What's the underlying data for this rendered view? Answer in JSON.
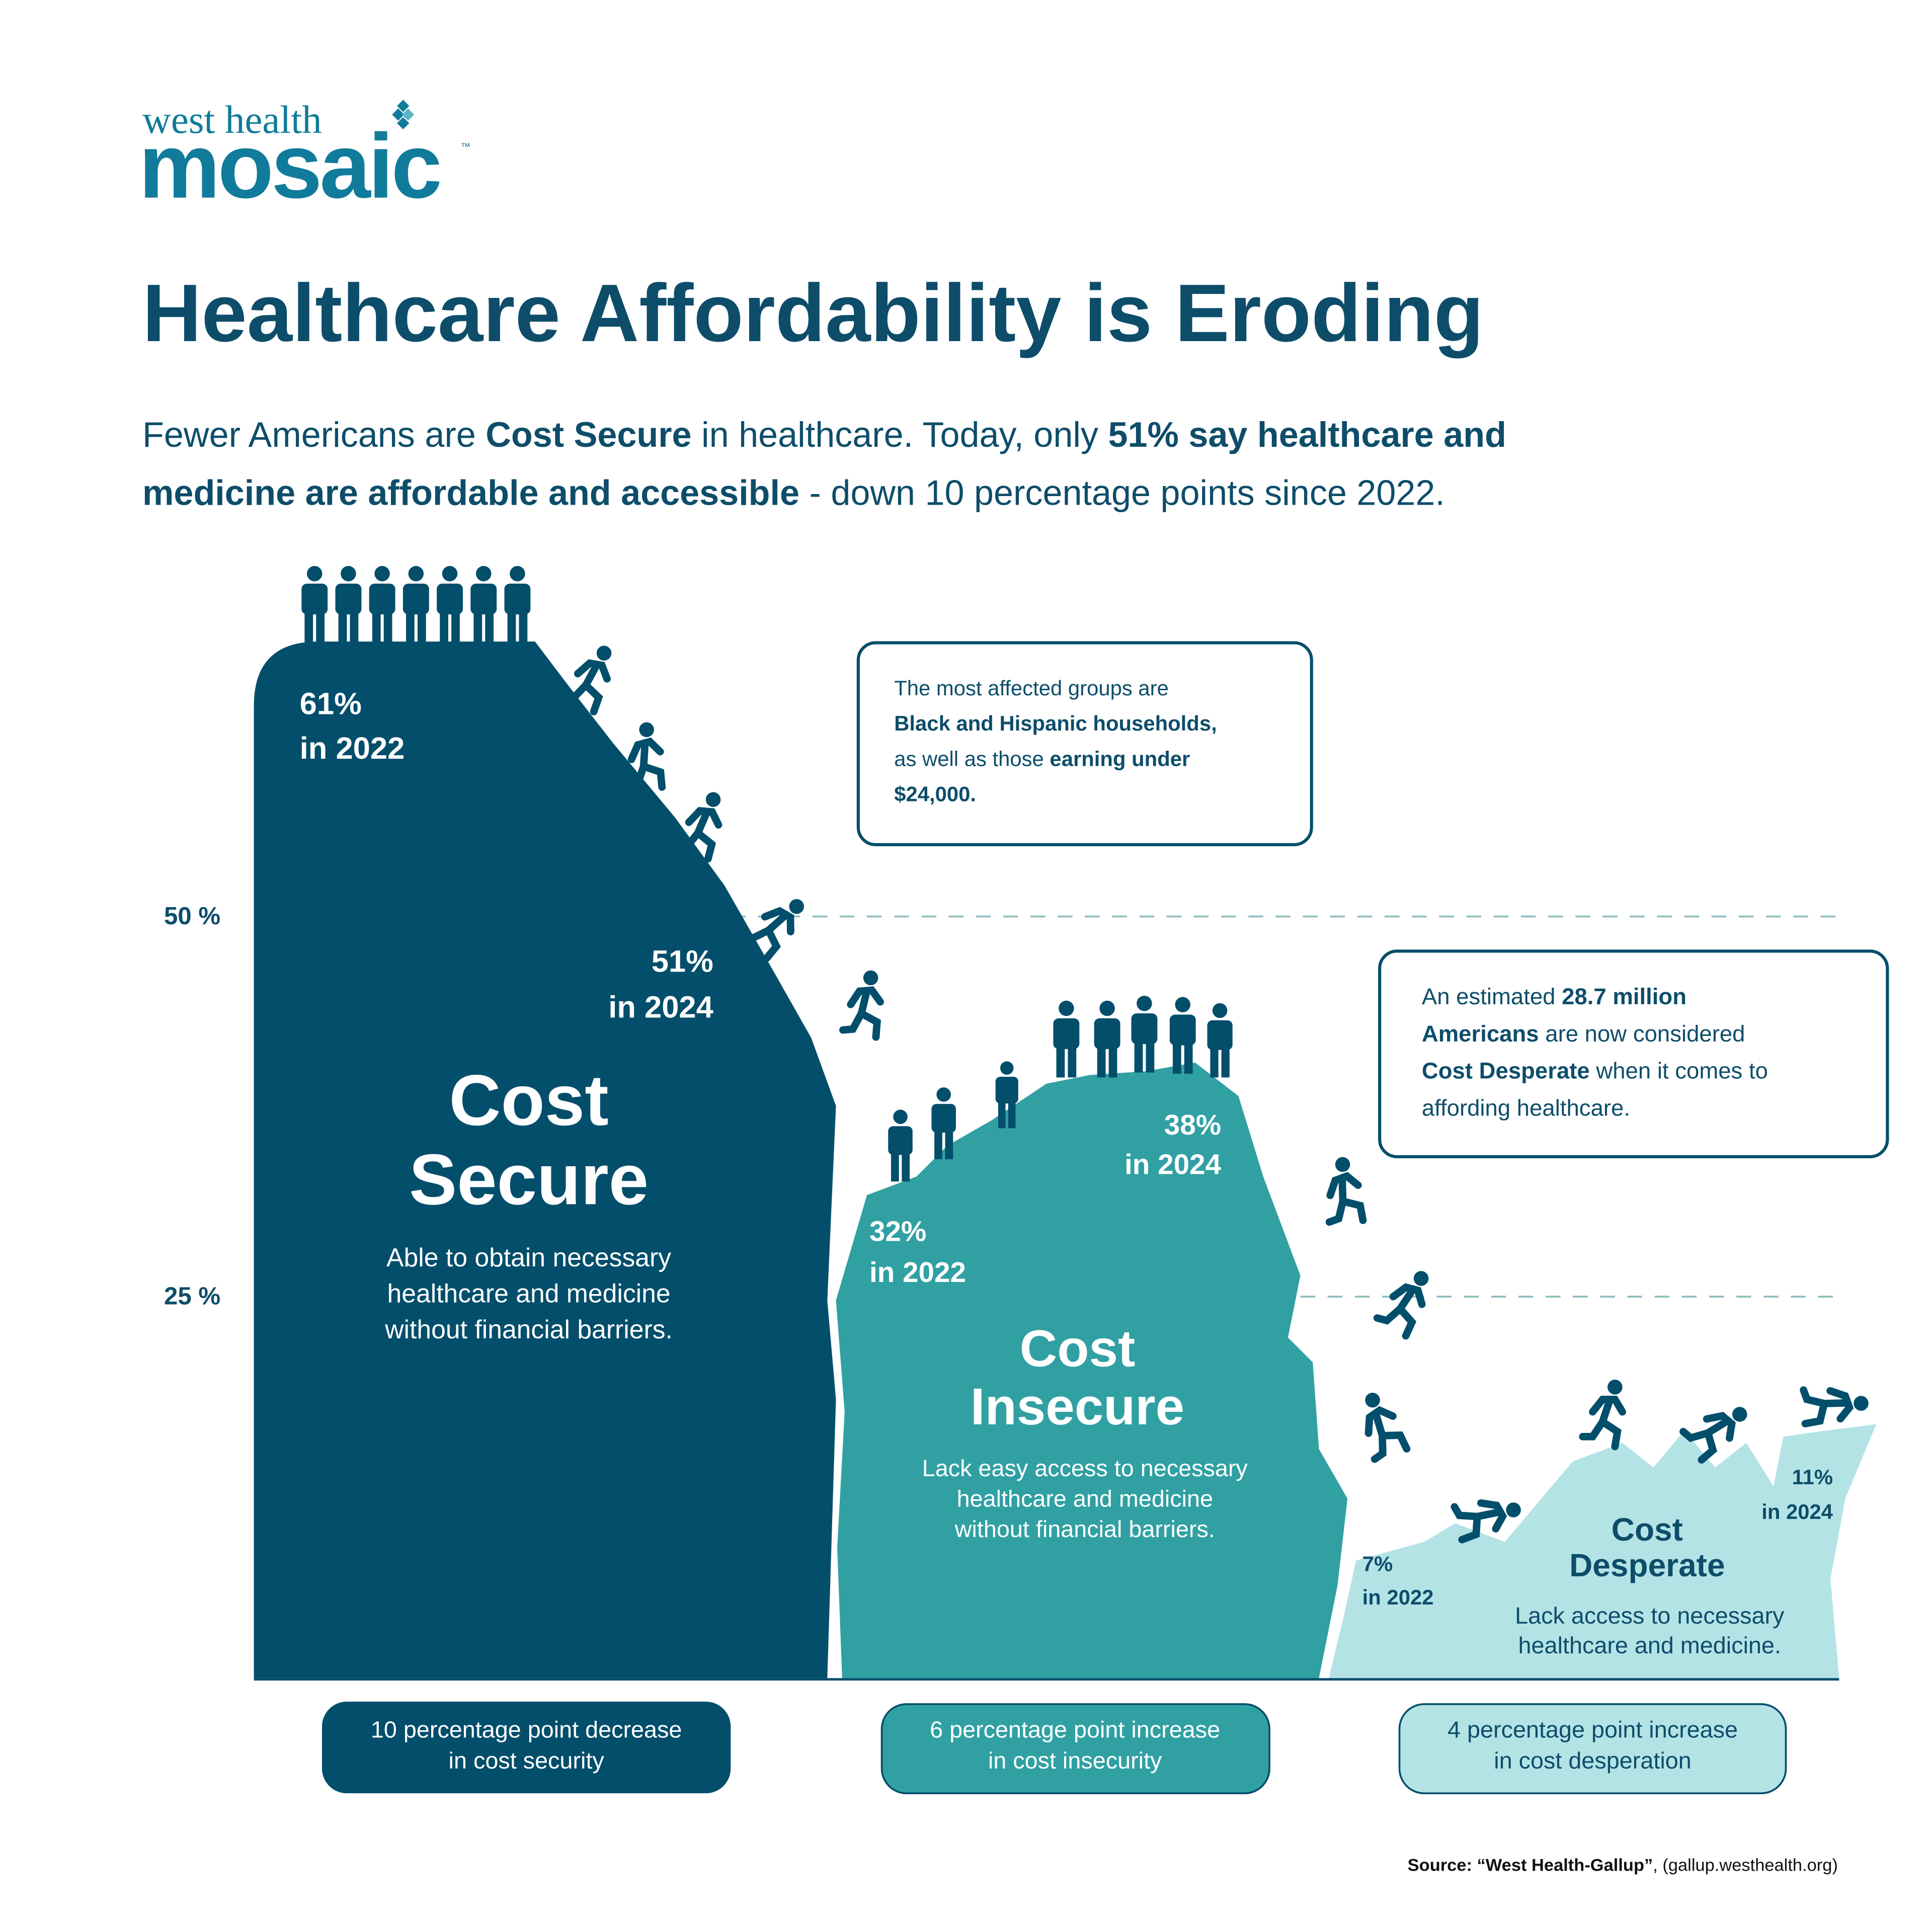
{
  "logo": {
    "line1": "west health",
    "line2": "mosaic",
    "mark": "™"
  },
  "title": "Healthcare Affordability is Eroding",
  "subtitle": [
    [
      {
        "text": "Fewer Americans are "
      },
      {
        "text": "Cost Secure",
        "bold": true
      },
      {
        "text": " in healthcare. Today, only "
      },
      {
        "text": "51% say healthcare and",
        "bold": true
      }
    ],
    [
      {
        "text": "medicine are affordable and accessible",
        "bold": true
      },
      {
        "text": " - down 10 percentage points since 2022."
      }
    ]
  ],
  "axis_labels": [
    "50 %",
    "25 %"
  ],
  "groups": [
    {
      "name": [
        "Cost",
        "Secure"
      ],
      "description": [
        "Able to obtain necessary",
        "healthcare and medicine",
        "without financial barriers."
      ],
      "label_2022": [
        "61%",
        "in 2022"
      ],
      "label_2024": [
        "51%",
        "in 2024"
      ],
      "change": [
        "10 percentage point decrease",
        "in cost security"
      ]
    },
    {
      "name": [
        "Cost",
        "Insecure"
      ],
      "description": [
        "Lack easy access to necessary",
        "healthcare and medicine",
        "without financial barriers."
      ],
      "label_2022": [
        "32%",
        "in 2022"
      ],
      "label_2024": [
        "38%",
        "in 2024"
      ],
      "change": [
        "6 percentage point increase",
        "in cost insecurity"
      ]
    },
    {
      "name": [
        "Cost",
        "Desperate"
      ],
      "description": [
        "Lack access to necessary",
        "healthcare and medicine."
      ],
      "label_2022": [
        "7%",
        "in 2022"
      ],
      "label_2024": [
        "11%",
        "in 2024"
      ],
      "change": [
        "4 percentage point increase",
        "in cost desperation"
      ]
    }
  ],
  "callouts": [
    [
      [
        {
          "text": "The most affected groups are"
        }
      ],
      [
        {
          "text": "Black and Hispanic households,",
          "bold": true
        }
      ],
      [
        {
          "text": "as well as those "
        },
        {
          "text": "earning under",
          "bold": true
        }
      ],
      [
        {
          "text": "$24,000.",
          "bold": true
        }
      ]
    ],
    [
      [
        {
          "text": "An estimated "
        },
        {
          "text": "28.7 million",
          "bold": true
        }
      ],
      [
        {
          "text": "Americans",
          "bold": true
        },
        {
          "text": " are now considered"
        }
      ],
      [
        {
          "text": "Cost Desperate",
          "bold": true
        },
        {
          "text": " when it comes to"
        }
      ],
      [
        {
          "text": "affording healthcare."
        }
      ]
    ]
  ],
  "source": [
    {
      "text": "Source: ",
      "bold": true
    },
    {
      "text": "“West Health-Gallup”",
      "bold": true
    },
    {
      "text": ", (gallup.westhealth.org)"
    }
  ]
}
